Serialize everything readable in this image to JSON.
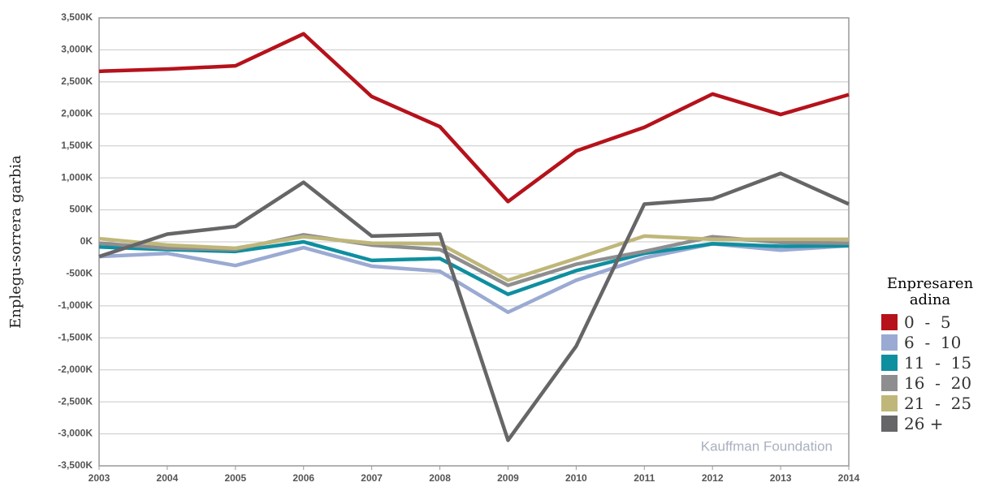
{
  "chart_data": {
    "type": "line",
    "y_label": "Enplegu-sorrera garbia",
    "annotation": "Kauffman Foundation",
    "legend_title": "Enpresaren adina",
    "categories": [
      "2003",
      "2004",
      "2005",
      "2006",
      "2007",
      "2008",
      "2009",
      "2010",
      "2011",
      "2012",
      "2013",
      "2014"
    ],
    "ylim": [
      -3500,
      3500
    ],
    "yticks": [
      {
        "value": 3500,
        "label": "3,500K"
      },
      {
        "value": 3000,
        "label": "3,000K"
      },
      {
        "value": 2500,
        "label": "2,500K"
      },
      {
        "value": 2000,
        "label": "2,000K"
      },
      {
        "value": 1500,
        "label": "1,500K"
      },
      {
        "value": 1000,
        "label": "1,000K"
      },
      {
        "value": 500,
        "label": "500K"
      },
      {
        "value": 0,
        "label": "0K"
      },
      {
        "value": -500,
        "label": "-500K"
      },
      {
        "value": -1000,
        "label": "-1,000K"
      },
      {
        "value": -1500,
        "label": "-1,500K"
      },
      {
        "value": -2000,
        "label": "-2,000K"
      },
      {
        "value": -2500,
        "label": "-2,500K"
      },
      {
        "value": -3000,
        "label": "-3,000K"
      },
      {
        "value": -3500,
        "label": "-3,500K"
      }
    ],
    "grid": true,
    "series": [
      {
        "name": "0  -  5",
        "color": "#b5121b",
        "values": [
          2665,
          2700,
          2750,
          3250,
          2270,
          1800,
          630,
          1420,
          1790,
          2310,
          1990,
          2300
        ]
      },
      {
        "name": "6  -  10",
        "color": "#9aaad3",
        "values": [
          -230,
          -180,
          -370,
          -90,
          -380,
          -460,
          -1100,
          -600,
          -250,
          -30,
          -130,
          -60
        ]
      },
      {
        "name": "11  -  15",
        "color": "#0e8fa0",
        "values": [
          -80,
          -120,
          -150,
          0,
          -290,
          -260,
          -820,
          -450,
          -180,
          -30,
          -70,
          -60
        ]
      },
      {
        "name": "16  -  20",
        "color": "#8e8e90",
        "values": [
          -20,
          -100,
          -120,
          110,
          -50,
          -120,
          -680,
          -350,
          -150,
          80,
          -10,
          -20
        ]
      },
      {
        "name": "21  -  25",
        "color": "#bfb77a",
        "values": [
          50,
          -50,
          -100,
          80,
          -20,
          -30,
          -600,
          -260,
          90,
          40,
          40,
          40
        ]
      },
      {
        "name": "26 +",
        "color": "#666669",
        "values": [
          -230,
          120,
          240,
          930,
          90,
          120,
          -3100,
          -1630,
          590,
          670,
          1070,
          590
        ]
      }
    ]
  }
}
